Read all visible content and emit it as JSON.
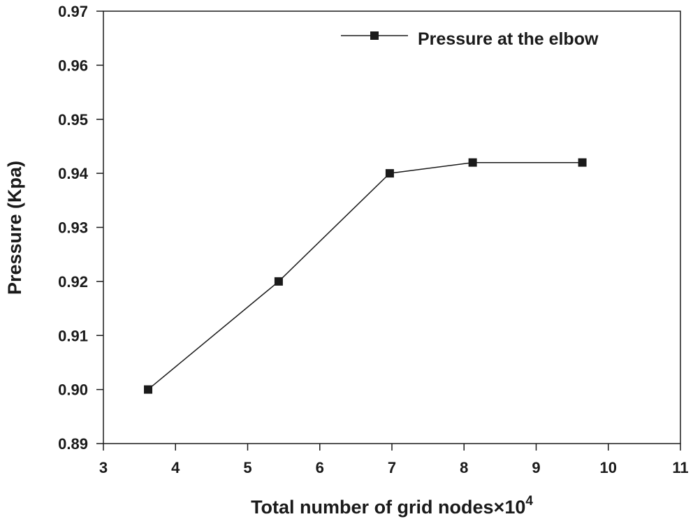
{
  "chart_data": {
    "type": "line",
    "title": "",
    "xlabel": "Total number of grid nodes×10",
    "xlabel_exponent": "4",
    "ylabel": "Pressure (Kpa)",
    "xlim": [
      3,
      11
    ],
    "ylim": [
      0.89,
      0.97
    ],
    "x_ticks": [
      3,
      4,
      5,
      6,
      7,
      8,
      9,
      10,
      11
    ],
    "x_tick_labels": [
      "3",
      "4",
      "5",
      "6",
      "7",
      "8",
      "9",
      "10",
      "11"
    ],
    "y_ticks": [
      0.89,
      0.9,
      0.91,
      0.92,
      0.93,
      0.94,
      0.95,
      0.96,
      0.97
    ],
    "y_tick_labels": [
      "0.89",
      "0.90",
      "0.91",
      "0.92",
      "0.93",
      "0.94",
      "0.95",
      "0.96",
      "0.97"
    ],
    "grid": false,
    "legend_position": "top-right",
    "series": [
      {
        "name": "Pressure at the elbow",
        "marker": "square",
        "color": "#1a1a1a",
        "x": [
          3.62,
          5.43,
          6.97,
          8.12,
          9.64
        ],
        "y": [
          0.9,
          0.92,
          0.94,
          0.942,
          0.942
        ]
      }
    ]
  }
}
